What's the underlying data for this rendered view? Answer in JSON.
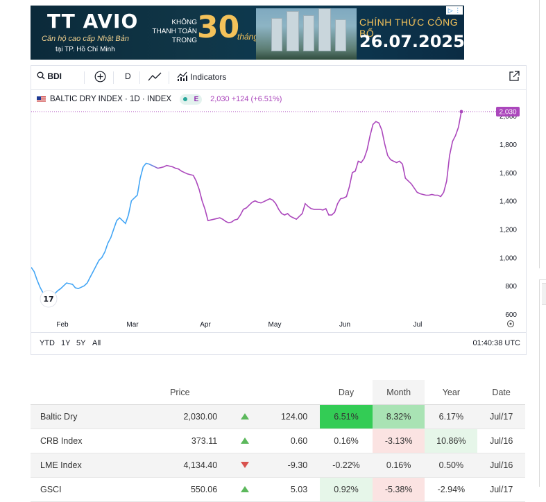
{
  "banner": {
    "logo": "TT AVIO",
    "tagline": "Căn hộ cao cấp Nhật Bản",
    "location": "tại TP. Hồ Chí Minh",
    "pay_text": [
      "KHÔNG",
      "THANH TOÁN",
      "TRONG"
    ],
    "months_num": "30",
    "months_word": "tháng",
    "announce": "CHÍNH THỨC CÔNG BỐ",
    "date": "26.07.2025",
    "colors": {
      "bg": "#0b2a3a",
      "gold": "#f4c25a"
    }
  },
  "toolbar": {
    "symbol": "BDI",
    "interval": "D",
    "indicators": "Indicators",
    "icons": [
      "search-icon",
      "add-compare-icon",
      "line-chart-icon",
      "indicators-icon",
      "popout-icon"
    ]
  },
  "legend": {
    "title": "BALTIC DRY INDEX · 1D · INDEX",
    "e_badge": "E",
    "values": "2,030 +124 (+6.51%)"
  },
  "chart_data": {
    "type": "line",
    "x_labels": [
      "Feb",
      "Mar",
      "Apr",
      "May",
      "Jun",
      "Jul"
    ],
    "y_ticks": [
      "600",
      "800",
      "1,000",
      "1,200",
      "1,400",
      "1,600",
      "1,800",
      "2,000"
    ],
    "ylim": [
      600,
      2030
    ],
    "last_value_label": "2,030",
    "series": [
      {
        "values": [
          930,
          900,
          840,
          790,
          750,
          740,
          735,
          740,
          745,
          765,
          780,
          800,
          820,
          815,
          810,
          785,
          780,
          790,
          800,
          820,
          860,
          900,
          940,
          980,
          1000,
          1040,
          1100,
          1140,
          1200,
          1260,
          1280,
          1260,
          1240,
          1300,
          1400,
          1420,
          1440,
          1560,
          1640,
          1665,
          1660,
          1650,
          1640,
          1630,
          1635,
          1640,
          1650,
          1645,
          1640,
          1630,
          1625,
          1610,
          1600,
          1590,
          1585,
          1580,
          1540,
          1480,
          1400,
          1340,
          1260,
          1265,
          1270,
          1275,
          1280,
          1270,
          1255,
          1245,
          1250,
          1265,
          1270,
          1300,
          1340,
          1350,
          1370,
          1390,
          1400,
          1390,
          1385,
          1395,
          1405,
          1415,
          1405,
          1380,
          1340,
          1310,
          1300,
          1310,
          1290,
          1280,
          1270,
          1290,
          1310,
          1380,
          1360,
          1345,
          1340,
          1340,
          1340,
          1335,
          1345,
          1300,
          1300,
          1320,
          1380,
          1415,
          1420,
          1430,
          1500,
          1600,
          1610,
          1680,
          1670,
          1700,
          1760,
          1860,
          1940,
          1960,
          1950,
          1900,
          1800,
          1720,
          1690,
          1680,
          1670,
          1680,
          1660,
          1560,
          1540,
          1520,
          1490,
          1460,
          1450,
          1445,
          1440,
          1440,
          1445,
          1440,
          1440,
          1430,
          1460,
          1540,
          1720,
          1820,
          1860,
          1920,
          2030
        ],
        "colors": {
          "start": "#42a5f5",
          "end": "#ab47bc"
        }
      }
    ],
    "grid": false,
    "legend_position": "top-left"
  },
  "range_buttons": [
    "YTD",
    "1Y",
    "5Y",
    "All"
  ],
  "clock": "01:40:38 UTC",
  "table": {
    "headers": [
      "",
      "Price",
      "",
      "",
      "Day",
      "Month",
      "Year",
      "Date"
    ],
    "rows": [
      {
        "name": "Baltic Dry",
        "price": "2,030.00",
        "dir": "up",
        "change": "124.00",
        "day": "6.51%",
        "month": "8.32%",
        "year": "6.17%",
        "date": "Jul/17",
        "day_bg": "#33cc55",
        "month_bg": "#a9e3b4",
        "year_bg": "#f4f4f4"
      },
      {
        "name": "CRB Index",
        "price": "373.11",
        "dir": "up",
        "change": "0.60",
        "day": "0.16%",
        "month": "-3.13%",
        "year": "10.86%",
        "date": "Jul/16",
        "day_bg": "#ffffff",
        "month_bg": "#fbe3e2",
        "year_bg": "#e6f6e9"
      },
      {
        "name": "LME Index",
        "price": "4,134.40",
        "dir": "down",
        "change": "-9.30",
        "day": "-0.22%",
        "month": "0.16%",
        "year": "0.50%",
        "date": "Jul/16",
        "day_bg": "#f4f4f4",
        "month_bg": "#f4f4f4",
        "year_bg": "#f4f4f4"
      },
      {
        "name": "GSCI",
        "price": "550.06",
        "dir": "up",
        "change": "5.03",
        "day": "0.92%",
        "month": "-5.38%",
        "year": "-2.94%",
        "date": "Jul/17",
        "day_bg": "#e6f6e9",
        "month_bg": "#fbe3e2",
        "year_bg": "#ffffff"
      }
    ]
  }
}
